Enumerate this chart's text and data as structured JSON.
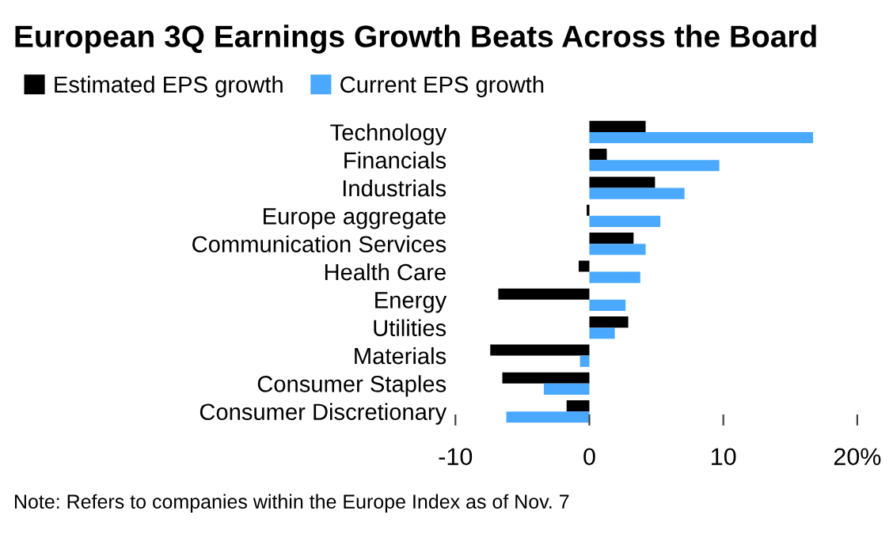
{
  "chart_data": {
    "type": "bar",
    "orientation": "horizontal",
    "title": "European 3Q Earnings Growth Beats Across the Board",
    "categories": [
      "Technology",
      "Financials",
      "Industrials",
      "Europe aggregate",
      "Communication Services",
      "Health Care",
      "Energy",
      "Utilities",
      "Materials",
      "Consumer Staples",
      "Consumer Discretionary"
    ],
    "series": [
      {
        "name": "Estimated EPS growth",
        "color": "#000000",
        "values": [
          4.2,
          1.3,
          4.9,
          -0.2,
          3.3,
          -0.8,
          -6.8,
          2.9,
          -7.4,
          -6.5,
          -1.7
        ]
      },
      {
        "name": "Current EPS growth",
        "color": "#4aa8ff",
        "values": [
          16.7,
          9.7,
          7.1,
          5.3,
          4.2,
          3.8,
          2.7,
          1.9,
          -0.7,
          -3.4,
          -6.2
        ]
      }
    ],
    "xlim": [
      -10,
      20
    ],
    "xticks": [
      -10,
      0,
      10,
      {
        "value": 20,
        "label": "20%"
      }
    ],
    "legend": "top left",
    "grid": false,
    "annotations": [
      "Note: Refers to companies within the Europe Index as of Nov. 7"
    ]
  }
}
